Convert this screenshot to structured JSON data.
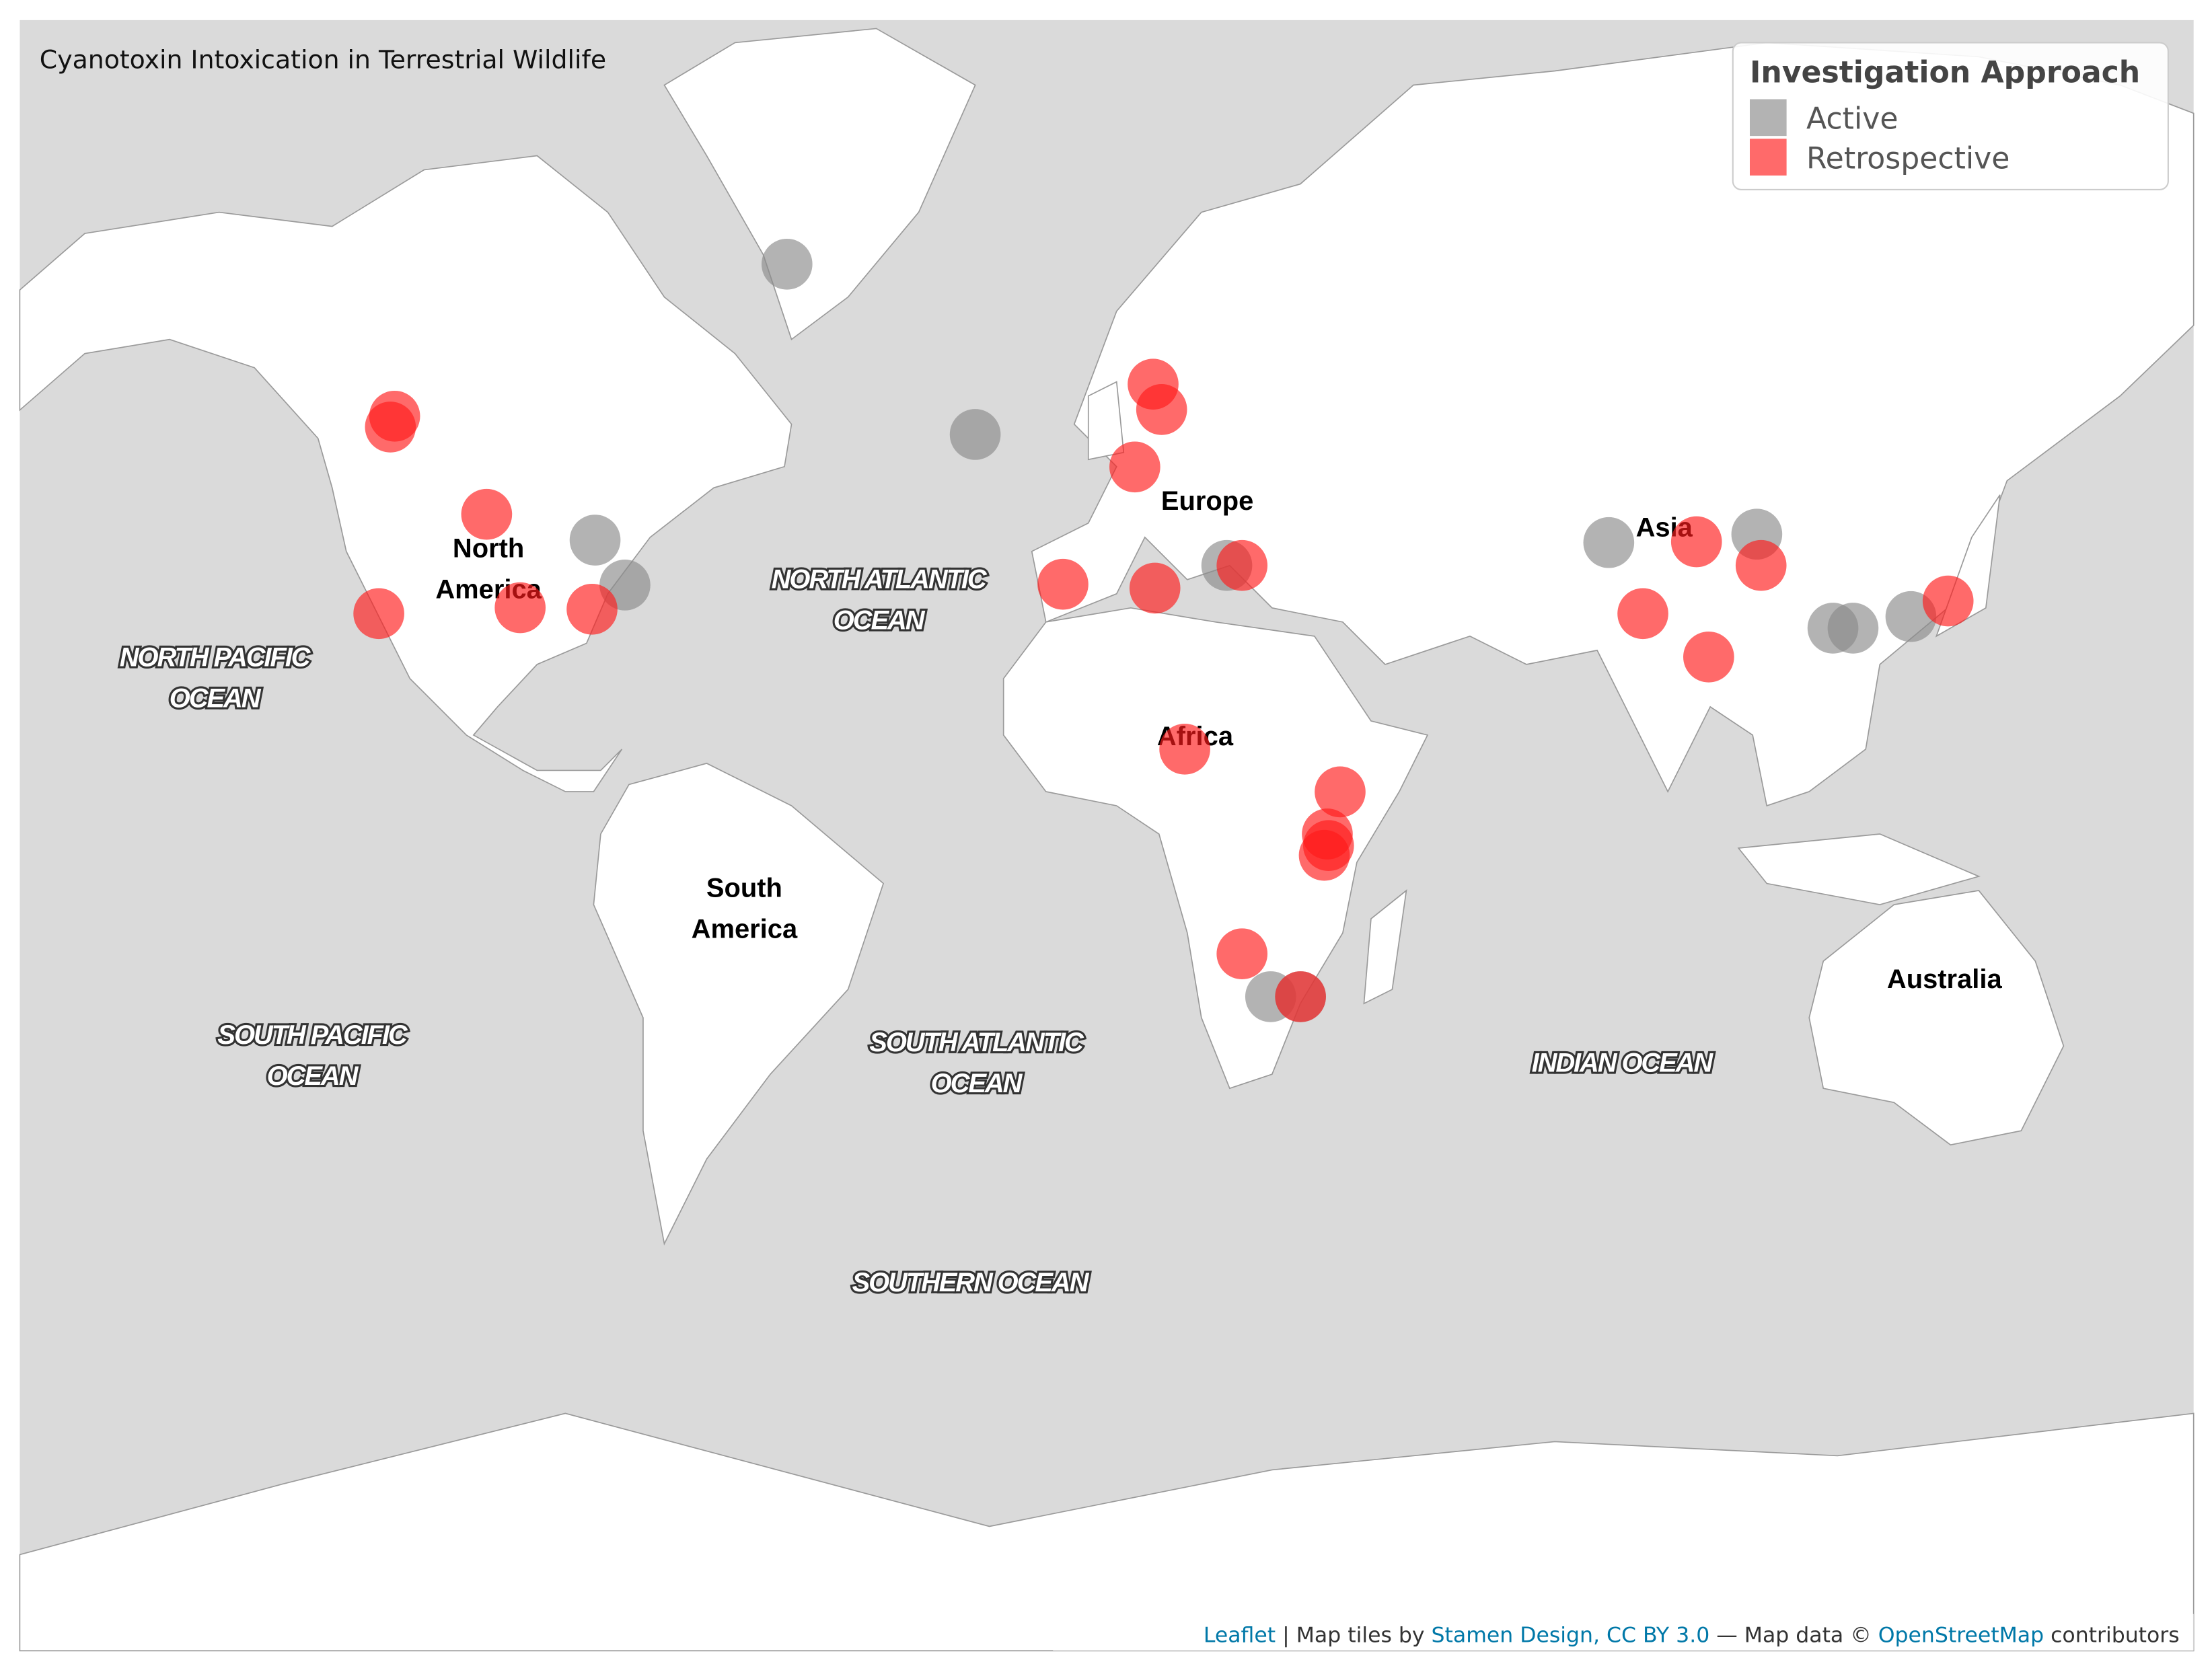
{
  "title": "Cyanotoxin Intoxication in Terrestrial Wildlife",
  "legend": {
    "title": "Investigation Approach",
    "items": [
      {
        "name": "Active",
        "color": "#8a8a8a"
      },
      {
        "name": "Retrospective",
        "color": "#ff1a1a"
      }
    ]
  },
  "continent_labels": [
    {
      "lines": [
        "North",
        "America"
      ],
      "lon": -100,
      "lat": 40
    },
    {
      "lines": [
        "South",
        "America"
      ],
      "lon": -58,
      "lat": -12
    },
    {
      "lines": [
        "Europe"
      ],
      "lon": 18,
      "lat": 48
    },
    {
      "lines": [
        "Africa"
      ],
      "lon": 16,
      "lat": 16
    },
    {
      "lines": [
        "Asia"
      ],
      "lon": 93,
      "lat": 45
    },
    {
      "lines": [
        "Australia"
      ],
      "lon": 139,
      "lat": -23
    }
  ],
  "ocean_labels": [
    {
      "lines": [
        "NORTH PACIFIC",
        "OCEAN"
      ],
      "lon": -145,
      "lat": 25
    },
    {
      "lines": [
        "NORTH ATLANTIC",
        "OCEAN"
      ],
      "lon": -36,
      "lat": 36
    },
    {
      "lines": [
        "SOUTH PACIFIC",
        "OCEAN"
      ],
      "lon": -129,
      "lat": -34
    },
    {
      "lines": [
        "SOUTH ATLANTIC",
        "OCEAN"
      ],
      "lon": -20,
      "lat": -35
    },
    {
      "lines": [
        "INDIAN OCEAN"
      ],
      "lon": 86,
      "lat": -35
    },
    {
      "lines": [
        "SOUTHERN OCEAN"
      ],
      "lon": -21,
      "lat": -59
    }
  ],
  "points": [
    {
      "lon": -51.0,
      "lat": 67.9,
      "approach": "Active"
    },
    {
      "lon": -20.1,
      "lat": 54.7,
      "approach": "Active"
    },
    {
      "lon": -82.5,
      "lat": 43.4,
      "approach": "Active"
    },
    {
      "lon": -77.6,
      "lat": 37.8,
      "approach": "Active"
    },
    {
      "lon": 21.2,
      "lat": 40.3,
      "approach": "Active"
    },
    {
      "lon": 83.9,
      "lat": 43.1,
      "approach": "Active"
    },
    {
      "lon": 108.2,
      "lat": 44.1,
      "approach": "Active"
    },
    {
      "lon": 120.7,
      "lat": 32.0,
      "approach": "Active"
    },
    {
      "lon": 124.0,
      "lat": 32.0,
      "approach": "Active"
    },
    {
      "lon": 133.5,
      "lat": 33.6,
      "approach": "Active"
    },
    {
      "lon": 28.4,
      "lat": -25.8,
      "approach": "Active"
    },
    {
      "lon": 33.3,
      "lat": -25.8,
      "approach": "Active"
    },
    {
      "lon": -115.4,
      "lat": 56.4,
      "approach": "Retrospective"
    },
    {
      "lon": -116.1,
      "lat": 55.4,
      "approach": "Retrospective"
    },
    {
      "lon": -100.3,
      "lat": 46.4,
      "approach": "Retrospective"
    },
    {
      "lon": -118.0,
      "lat": 34.0,
      "approach": "Retrospective"
    },
    {
      "lon": -94.8,
      "lat": 34.8,
      "approach": "Retrospective"
    },
    {
      "lon": -83.0,
      "lat": 34.6,
      "approach": "Retrospective"
    },
    {
      "lon": 9.1,
      "lat": 59.2,
      "approach": "Retrospective"
    },
    {
      "lon": 10.5,
      "lat": 57.0,
      "approach": "Retrospective"
    },
    {
      "lon": 6.1,
      "lat": 51.5,
      "approach": "Retrospective"
    },
    {
      "lon": -5.7,
      "lat": 37.9,
      "approach": "Retrospective"
    },
    {
      "lon": 9.4,
      "lat": 37.4,
      "approach": "Retrospective"
    },
    {
      "lon": 23.7,
      "lat": 40.3,
      "approach": "Retrospective"
    },
    {
      "lon": 14.3,
      "lat": 13.8,
      "approach": "Retrospective"
    },
    {
      "lon": 39.8,
      "lat": 6.9,
      "approach": "Retrospective"
    },
    {
      "lon": 37.7,
      "lat": 0.0,
      "approach": "Retrospective"
    },
    {
      "lon": 37.9,
      "lat": -1.9,
      "approach": "Retrospective"
    },
    {
      "lon": 37.2,
      "lat": -3.5,
      "approach": "Retrospective"
    },
    {
      "lon": 23.7,
      "lat": -19.3,
      "approach": "Retrospective"
    },
    {
      "lon": 33.3,
      "lat": -25.8,
      "approach": "Retrospective"
    },
    {
      "lon": 98.3,
      "lat": 43.2,
      "approach": "Retrospective"
    },
    {
      "lon": 108.9,
      "lat": 40.3,
      "approach": "Retrospective"
    },
    {
      "lon": 89.5,
      "lat": 34.0,
      "approach": "Retrospective"
    },
    {
      "lon": 100.3,
      "lat": 27.9,
      "approach": "Retrospective"
    },
    {
      "lon": 139.6,
      "lat": 35.7,
      "approach": "Retrospective"
    }
  ],
  "attribution": {
    "leaflet": "Leaflet",
    "tiles": "| Map tiles by",
    "stamen": "Stamen Design, CC BY 3.0",
    "data": "— Map data ©",
    "osm": "OpenStreetMap",
    "end": "contributors"
  }
}
